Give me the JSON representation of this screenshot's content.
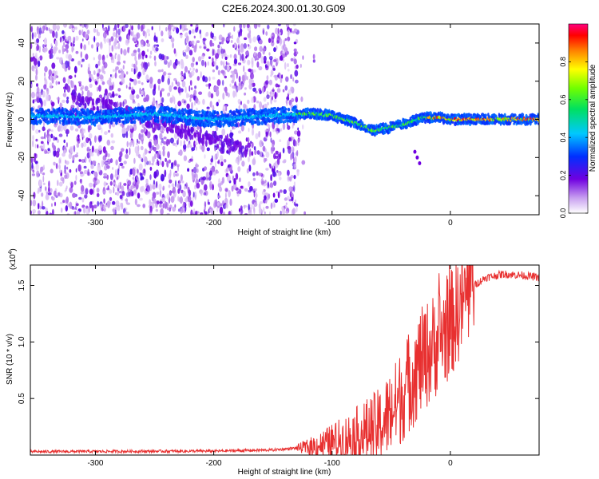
{
  "title": "C2E6.2024.300.01.30.G09",
  "spectrogram": {
    "type": "heatmap",
    "xlabel": "Height of straight line (km)",
    "ylabel": "Frequency (Hz)",
    "xlim": [
      -355,
      75
    ],
    "ylim": [
      -50,
      50
    ],
    "xticks": [
      -300,
      -200,
      -100,
      0
    ],
    "yticks": [
      -40,
      -20,
      0,
      20,
      40
    ],
    "colorbar": {
      "label": "Normalized spectral amplitude",
      "range": [
        0,
        1
      ],
      "ticks": [
        "0.0",
        "0.2",
        "0.4",
        "0.6",
        "0.8"
      ],
      "tick_values": [
        0,
        0.2,
        0.4,
        0.6,
        0.8
      ],
      "colormap": "rainbow (violet-blue-cyan-green-yellow-orange-red-magenta)"
    },
    "ridge": [
      {
        "x": -355,
        "y": 2
      },
      {
        "x": -300,
        "y": 1
      },
      {
        "x": -250,
        "y": 3
      },
      {
        "x": -200,
        "y": 0
      },
      {
        "x": -150,
        "y": 2
      },
      {
        "x": -120,
        "y": 3
      },
      {
        "x": -100,
        "y": 2
      },
      {
        "x": -80,
        "y": -2
      },
      {
        "x": -65,
        "y": -6
      },
      {
        "x": -50,
        "y": -4
      },
      {
        "x": -35,
        "y": -2
      },
      {
        "x": -25,
        "y": 1
      },
      {
        "x": -10,
        "y": 1
      },
      {
        "x": 0,
        "y": 0
      },
      {
        "x": 25,
        "y": 0
      },
      {
        "x": 50,
        "y": 0
      },
      {
        "x": 75,
        "y": 0
      }
    ]
  },
  "snr": {
    "type": "line",
    "xlabel": "Height of straight line (km)",
    "ylabel": "SNR (10 * v/v)",
    "scale_note": "(x10",
    "scale_exp": "4",
    "scale_close": ")",
    "xlim": [
      -355,
      75
    ],
    "ylim": [
      0,
      16800
    ],
    "xticks": [
      -300,
      -200,
      -100,
      0
    ],
    "yticks": [
      0.5,
      1.0,
      1.5
    ],
    "ytick_labels": [
      "0.5",
      "1.0",
      "1.5"
    ],
    "color": "#e83030",
    "profile": [
      [
        -355,
        300
      ],
      [
        -200,
        350
      ],
      [
        -150,
        450
      ],
      [
        -120,
        700
      ],
      [
        -100,
        1100
      ],
      [
        -80,
        1700
      ],
      [
        -60,
        2500
      ],
      [
        -45,
        4500
      ],
      [
        -35,
        6500
      ],
      [
        -25,
        8200
      ],
      [
        -15,
        9500
      ],
      [
        -8,
        10500
      ],
      [
        0,
        11500
      ],
      [
        10,
        13500
      ],
      [
        20,
        15000
      ],
      [
        30,
        15700
      ],
      [
        45,
        16000
      ],
      [
        60,
        15900
      ],
      [
        75,
        15700
      ]
    ]
  },
  "chart_data": [
    {
      "type": "heatmap",
      "title": "C2E6.2024.300.01.30.G09",
      "xlabel": "Height of straight line (km)",
      "ylabel": "Frequency (Hz)",
      "xlim": [
        -355,
        75
      ],
      "ylim": [
        -50,
        50
      ],
      "colorbar_label": "Normalized spectral amplitude",
      "colorbar_range": [
        0,
        1
      ]
    },
    {
      "type": "line",
      "xlabel": "Height of straight line (km)",
      "ylabel": "SNR (10 * v/v)",
      "xlim": [
        -355,
        75
      ],
      "ylim": [
        0,
        16800
      ],
      "y_scale": "x10^4",
      "series": [
        {
          "x": [
            -355,
            -200,
            -150,
            -120,
            -100,
            -80,
            -60,
            -45,
            -35,
            -25,
            -15,
            -8,
            0,
            10,
            20,
            30,
            45,
            60,
            75
          ],
          "y": [
            300,
            350,
            450,
            700,
            1100,
            1700,
            2500,
            4500,
            6500,
            8200,
            9500,
            10500,
            11500,
            13500,
            15000,
            15700,
            16000,
            15900,
            15700
          ]
        }
      ]
    }
  ]
}
